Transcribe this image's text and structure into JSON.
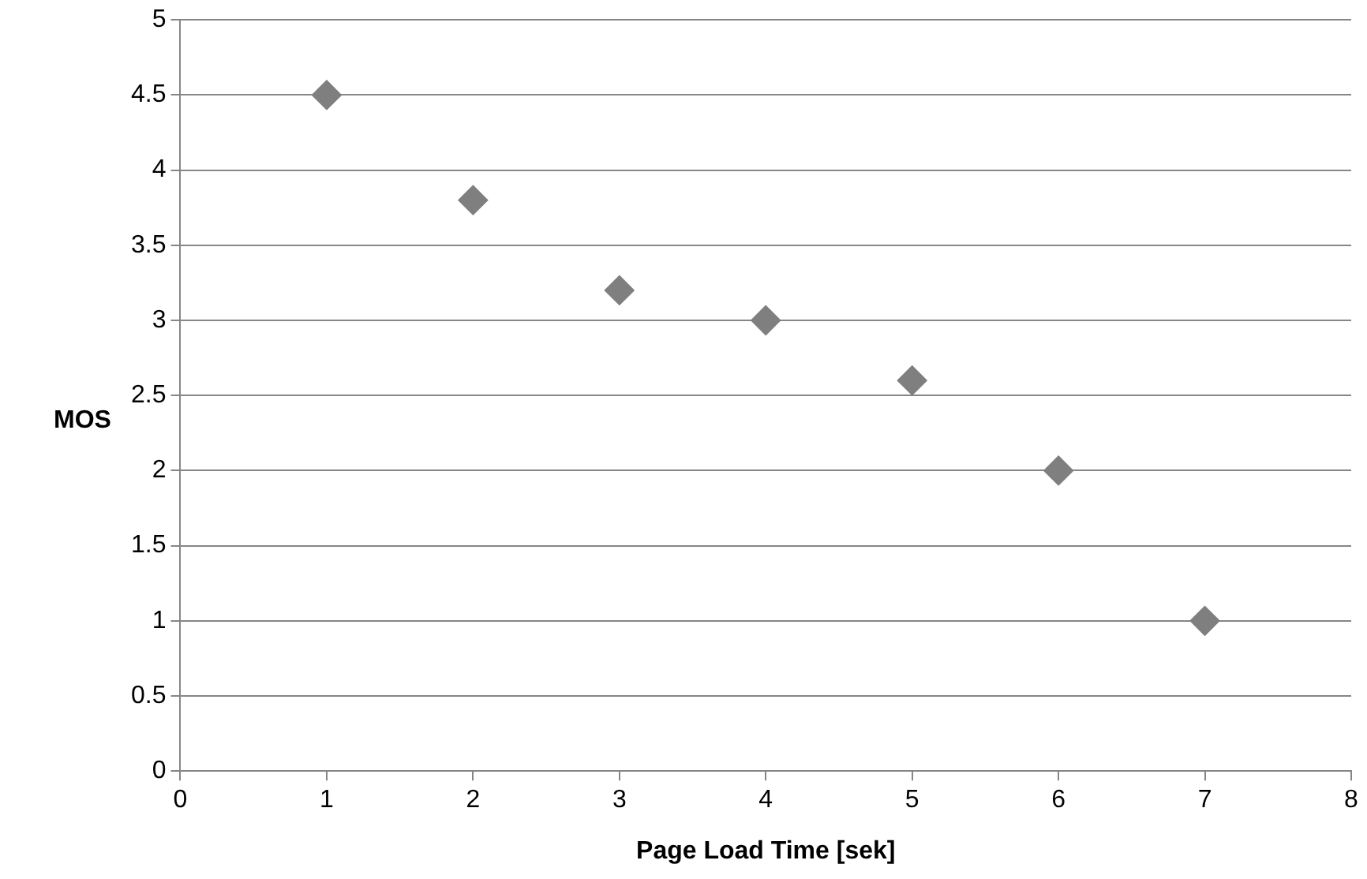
{
  "chart_data": {
    "type": "scatter",
    "xlabel": "Page Load Time [sek]",
    "ylabel": "MOS",
    "x": [
      1,
      2,
      3,
      4,
      5,
      6,
      7
    ],
    "series": [
      {
        "color": "#7f7f7f",
        "values": [
          4.5,
          3.8,
          3.2,
          3.0,
          2.6,
          2.0,
          1.0
        ]
      }
    ],
    "xlim": [
      0,
      8
    ],
    "xticks": [
      0,
      1,
      2,
      3,
      4,
      5,
      6,
      7,
      8
    ],
    "ylim": [
      0,
      5
    ],
    "yticks": [
      0,
      0.5,
      1,
      1.5,
      2,
      2.5,
      3,
      3.5,
      4,
      4.5,
      5
    ],
    "grid": "y",
    "legend": false,
    "marker": "diamond"
  }
}
